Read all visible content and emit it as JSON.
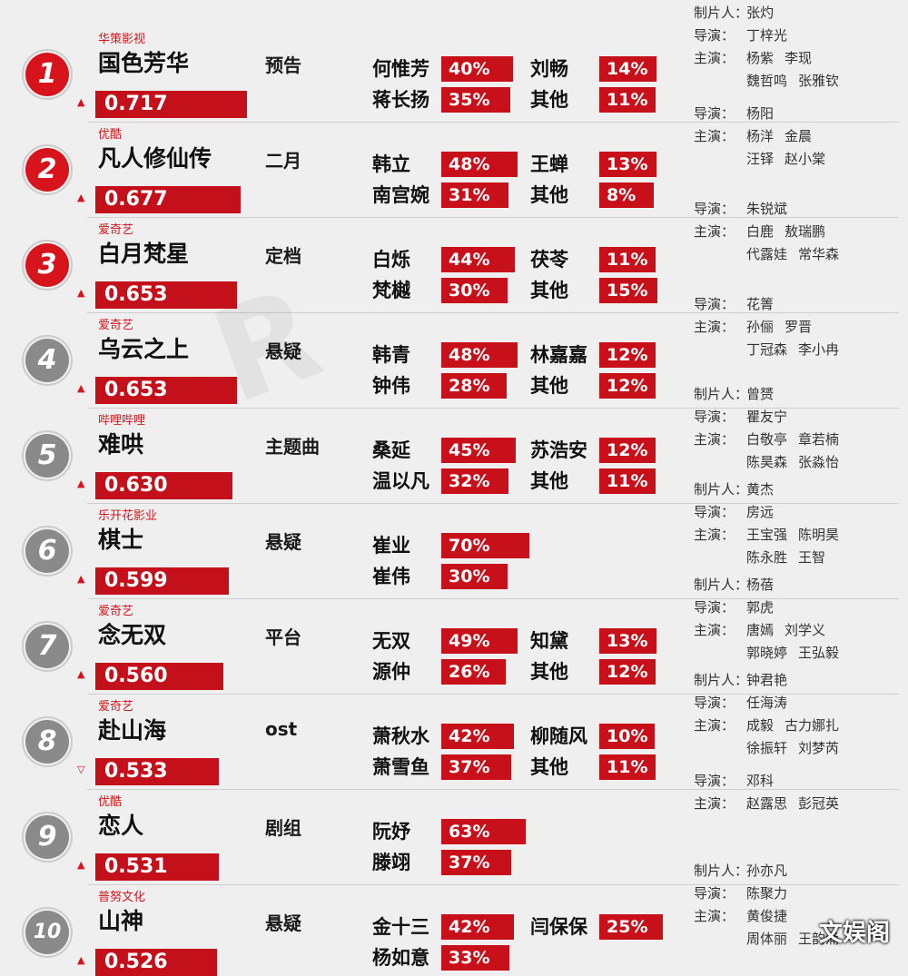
{
  "rows": [
    {
      "rank": "1",
      "platform": "华策影视",
      "title": "国色芳华",
      "score": "0.717",
      "trend": "▲",
      "tag": "预告",
      "c1": "何惟芳",
      "p1": "40%",
      "c2": "刘畅",
      "p2": "14%",
      "c3": "蒋长扬",
      "p3": "35%",
      "c4": "其他",
      "p4": "11%",
      "credits": [
        {
          "k": "制片人：",
          "v": "张灼",
          "v2": ""
        },
        {
          "k": "导演：",
          "v": "丁梓光",
          "v2": ""
        },
        {
          "k": "主演：",
          "v": "杨紫",
          "v2": "李现"
        },
        {
          "k": "",
          "v": "魏哲鸣",
          "v2": "张雅钦"
        }
      ]
    },
    {
      "rank": "2",
      "platform": "优酷",
      "title": "凡人修仙传",
      "score": "0.677",
      "trend": "▲",
      "tag": "二月",
      "c1": "韩立",
      "p1": "48%",
      "c2": "王蝉",
      "p2": "13%",
      "c3": "南宫婉",
      "p3": "31%",
      "c4": "其他",
      "p4": "8%",
      "credits": [
        {
          "k": "导演：",
          "v": "杨阳",
          "v2": ""
        },
        {
          "k": "主演：",
          "v": "杨洋",
          "v2": "金晨"
        },
        {
          "k": "",
          "v": "汪铎",
          "v2": "赵小棠"
        }
      ]
    },
    {
      "rank": "3",
      "platform": "爱奇艺",
      "title": "白月梵星",
      "score": "0.653",
      "trend": "▲",
      "tag": "定档",
      "c1": "白烁",
      "p1": "44%",
      "c2": "茯苓",
      "p2": "11%",
      "c3": "梵樾",
      "p3": "30%",
      "c4": "其他",
      "p4": "15%",
      "credits": [
        {
          "k": "导演：",
          "v": "朱锐斌",
          "v2": ""
        },
        {
          "k": "主演：",
          "v": "白鹿",
          "v2": "敖瑞鹏"
        },
        {
          "k": "",
          "v": "代露娃",
          "v2": "常华森"
        }
      ]
    },
    {
      "rank": "4",
      "platform": "爱奇艺",
      "title": "乌云之上",
      "score": "0.653",
      "trend": "▲",
      "tag": "悬疑",
      "c1": "韩青",
      "p1": "48%",
      "c2": "林嘉嘉",
      "p2": "12%",
      "c3": "钟伟",
      "p3": "28%",
      "c4": "其他",
      "p4": "12%",
      "credits": [
        {
          "k": "导演：",
          "v": "花箐",
          "v2": ""
        },
        {
          "k": "主演：",
          "v": "孙俪",
          "v2": "罗晋"
        },
        {
          "k": "",
          "v": "丁冠森",
          "v2": "李小冉"
        }
      ]
    },
    {
      "rank": "5",
      "platform": "哔哩哔哩",
      "title": "难哄",
      "score": "0.630",
      "trend": "▲",
      "tag": "主题曲",
      "c1": "桑延",
      "p1": "45%",
      "c2": "苏浩安",
      "p2": "12%",
      "c3": "温以凡",
      "p3": "32%",
      "c4": "其他",
      "p4": "11%",
      "credits": [
        {
          "k": "制片人：",
          "v": "曾赟",
          "v2": ""
        },
        {
          "k": "导演：",
          "v": "瞿友宁",
          "v2": ""
        },
        {
          "k": "主演：",
          "v": "白敬亭",
          "v2": "章若楠"
        },
        {
          "k": "",
          "v": "陈昊森",
          "v2": "张淼怡"
        }
      ]
    },
    {
      "rank": "6",
      "platform": "乐开花影业",
      "title": "棋士",
      "score": "0.599",
      "trend": "▲",
      "tag": "悬疑",
      "c1": "崔业",
      "p1": "70%",
      "c2": "",
      "p2": "",
      "c3": "崔伟",
      "p3": "30%",
      "c4": "",
      "p4": "",
      "credits": [
        {
          "k": "制片人：",
          "v": "黄杰",
          "v2": ""
        },
        {
          "k": "导演：",
          "v": "房远",
          "v2": ""
        },
        {
          "k": "主演：",
          "v": "王宝强",
          "v2": "陈明昊"
        },
        {
          "k": "",
          "v": "陈永胜",
          "v2": "王智"
        }
      ]
    },
    {
      "rank": "7",
      "platform": "爱奇艺",
      "title": "念无双",
      "score": "0.560",
      "trend": "▲",
      "tag": "平台",
      "c1": "无双",
      "p1": "49%",
      "c2": "知黛",
      "p2": "13%",
      "c3": "源仲",
      "p3": "26%",
      "c4": "其他",
      "p4": "12%",
      "credits": [
        {
          "k": "制片人：",
          "v": "杨蓓",
          "v2": ""
        },
        {
          "k": "导演：",
          "v": "郭虎",
          "v2": ""
        },
        {
          "k": "主演：",
          "v": "唐嫣",
          "v2": "刘学义"
        },
        {
          "k": "",
          "v": "郭晓婷",
          "v2": "王弘毅"
        }
      ]
    },
    {
      "rank": "8",
      "platform": "爱奇艺",
      "title": "赴山海",
      "score": "0.533",
      "trend": "▽",
      "tag": "ost",
      "c1": "萧秋水",
      "p1": "42%",
      "c2": "柳随风",
      "p2": "10%",
      "c3": "萧雪鱼",
      "p3": "37%",
      "c4": "其他",
      "p4": "11%",
      "credits": [
        {
          "k": "制片人：",
          "v": "钟君艳",
          "v2": ""
        },
        {
          "k": "导演：",
          "v": "任海涛",
          "v2": ""
        },
        {
          "k": "主演：",
          "v": "成毅",
          "v2": "古力娜扎"
        },
        {
          "k": "",
          "v": "徐振轩",
          "v2": "刘梦芮"
        }
      ]
    },
    {
      "rank": "9",
      "platform": "优酷",
      "title": "恋人",
      "score": "0.531",
      "trend": "▲",
      "tag": "剧组",
      "c1": "阮妤",
      "p1": "63%",
      "c2": "",
      "p2": "",
      "c3": "滕翊",
      "p3": "37%",
      "c4": "",
      "p4": "",
      "credits": [
        {
          "k": "导演：",
          "v": "邓科",
          "v2": ""
        },
        {
          "k": "主演：",
          "v": "赵露思",
          "v2": "彭冠英"
        }
      ]
    },
    {
      "rank": "10",
      "platform": "普努文化",
      "title": "山神",
      "score": "0.526",
      "trend": "▲",
      "tag": "悬疑",
      "c1": "金十三",
      "p1": "42%",
      "c2": "闫保保",
      "p2": "25%",
      "c3": "杨如意",
      "p3": "33%",
      "c4": "",
      "p4": "",
      "credits": [
        {
          "k": "制片人：",
          "v": "孙亦凡",
          "v2": ""
        },
        {
          "k": "导演：",
          "v": "陈聚力",
          "v2": ""
        },
        {
          "k": "主演：",
          "v": "黄俊捷",
          "v2": ""
        },
        {
          "k": "",
          "v": "周体丽",
          "v2": "王韵涌"
        }
      ]
    }
  ],
  "watermark": "文娱阁",
  "colors": {
    "accent": "#c8101a",
    "rank_top": "#d7141c",
    "rank_other": "#8a8a8a",
    "background": "#efefef"
  }
}
